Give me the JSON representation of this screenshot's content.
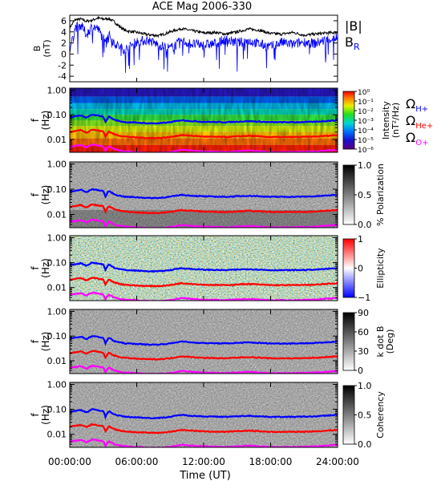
{
  "chart_data": [
    {
      "type": "line",
      "title": "ACE Mag 2006-330",
      "ylabel": "B",
      "yunit": "(nT)",
      "ylim": [
        -5,
        7
      ],
      "yticks": [
        "6",
        "4",
        "2",
        "0",
        "-2",
        "-4"
      ],
      "xlim": [
        "00:00:00",
        "24:00:00"
      ],
      "series": [
        {
          "name": "|B|",
          "color": "#000000",
          "x_hours": [
            0,
            0.5,
            1,
            1.5,
            2,
            2.5,
            3,
            3.5,
            4,
            4.5,
            5,
            6,
            7,
            8,
            9,
            10,
            11,
            12,
            13,
            14,
            15,
            16,
            17,
            18,
            19,
            20,
            21,
            22,
            23,
            24
          ],
          "values": [
            4.8,
            6.2,
            6.3,
            5.9,
            6.1,
            6.5,
            6.3,
            6.4,
            5.8,
            4.9,
            4.2,
            3.9,
            3.5,
            3.3,
            4.0,
            4.6,
            4.2,
            3.8,
            3.9,
            3.6,
            4.0,
            4.5,
            4.3,
            3.7,
            3.6,
            3.9,
            3.4,
            3.6,
            3.8,
            3.9
          ]
        },
        {
          "name": "B_R",
          "color": "#0000ff",
          "x_hours": [
            0,
            0.5,
            1,
            1.5,
            2,
            2.5,
            3,
            3.5,
            4,
            4.5,
            5,
            6,
            7,
            8,
            9,
            10,
            11,
            12,
            13,
            14,
            15,
            16,
            17,
            18,
            19,
            20,
            21,
            22,
            23,
            24
          ],
          "values": [
            0.5,
            4.8,
            5.2,
            3.5,
            5.0,
            4.6,
            2.8,
            3.5,
            2.0,
            1.2,
            0.8,
            2.2,
            2.5,
            1.6,
            1.0,
            2.3,
            1.8,
            1.6,
            1.9,
            2.6,
            2.0,
            2.4,
            1.8,
            1.3,
            2.1,
            1.7,
            2.2,
            1.9,
            2.6,
            3.0
          ]
        }
      ]
    },
    {
      "type": "heatmap",
      "ylabel": "f",
      "yunit": "(Hz)",
      "colorbar_label": "Intensity",
      "colorbar_unit": "(nT²/Hz)",
      "colorbar_ticks": [
        "10⁰",
        "10⁻¹",
        "10⁻²",
        "10⁻³",
        "10⁻⁴",
        "10⁻⁵",
        "10⁻⁶"
      ],
      "colorbar_range": [
        1e-06,
        1
      ],
      "log_y": true
    },
    {
      "type": "heatmap",
      "ylabel": "f",
      "yunit": "(Hz)",
      "colorbar_label": "% Polarization",
      "colorbar_ticks": [
        "1.0",
        "0.5",
        "0.0"
      ],
      "colorbar_range": [
        0,
        1
      ],
      "log_y": true
    },
    {
      "type": "heatmap",
      "ylabel": "f",
      "yunit": "(Hz)",
      "colorbar_label": "Ellipticity",
      "colorbar_ticks": [
        "1",
        "0",
        "−1"
      ],
      "colorbar_range": [
        -1,
        1
      ],
      "log_y": true
    },
    {
      "type": "heatmap",
      "ylabel": "f",
      "yunit": "(Hz)",
      "colorbar_label": "k dot B",
      "colorbar_unit": "(Deg)",
      "colorbar_ticks": [
        "90",
        "60",
        "30",
        "0"
      ],
      "colorbar_range": [
        0,
        90
      ],
      "log_y": true
    },
    {
      "type": "heatmap",
      "ylabel": "f",
      "yunit": "(Hz)",
      "colorbar_label": "Coherency",
      "colorbar_ticks": [
        "1.0",
        "0.5",
        "0.0"
      ],
      "colorbar_range": [
        0,
        1
      ],
      "log_y": true
    }
  ],
  "shared": {
    "freq_ticks": [
      "1.00",
      "0.10",
      "0.01"
    ],
    "freq_range_hz": [
      0.003,
      1.2
    ],
    "time_ticks": [
      "00:00:00",
      "06:00:00",
      "12:00:00",
      "18:00:00",
      "24:00:00"
    ],
    "xlabel": "Time (UT)",
    "gyro_lines": [
      {
        "label": "Ω",
        "subscript": "H+",
        "color": "#0000ff",
        "x_hours": [
          0,
          1,
          1.5,
          2,
          3,
          3.2,
          3.5,
          4,
          4.5,
          5,
          6,
          7,
          8,
          9,
          10,
          11,
          12,
          14,
          16,
          18,
          20,
          22,
          24
        ],
        "values": [
          0.078,
          0.095,
          0.075,
          0.1,
          0.085,
          0.05,
          0.085,
          0.062,
          0.055,
          0.05,
          0.048,
          0.045,
          0.045,
          0.05,
          0.06,
          0.055,
          0.052,
          0.05,
          0.055,
          0.05,
          0.05,
          0.052,
          0.06
        ]
      },
      {
        "label": "Ω",
        "subscript": "He+",
        "color": "#ff0000",
        "x_hours": [
          0,
          1,
          1.5,
          2,
          3,
          3.2,
          3.5,
          4,
          4.5,
          5,
          6,
          7,
          8,
          9,
          10,
          11,
          12,
          14,
          16,
          18,
          20,
          22,
          24
        ],
        "values": [
          0.02,
          0.024,
          0.019,
          0.025,
          0.021,
          0.013,
          0.021,
          0.016,
          0.014,
          0.013,
          0.012,
          0.0115,
          0.0115,
          0.0125,
          0.015,
          0.014,
          0.013,
          0.0125,
          0.014,
          0.0125,
          0.0125,
          0.013,
          0.015
        ]
      },
      {
        "label": "Ω",
        "subscript": "O+",
        "color": "#ff00ff",
        "x_hours": [
          0,
          1,
          1.5,
          2,
          3,
          3.2,
          3.5,
          4,
          4.5,
          5,
          6,
          7,
          8,
          9,
          10,
          11,
          12,
          14,
          16,
          18,
          20,
          22,
          24
        ],
        "values": [
          0.005,
          0.006,
          0.0048,
          0.0062,
          0.0053,
          0.0033,
          0.0053,
          0.004,
          0.0035,
          0.0033,
          0.0031,
          0.0029,
          0.0029,
          0.0031,
          0.0038,
          0.0035,
          0.0033,
          0.0031,
          0.0035,
          0.0031,
          0.0031,
          0.0033,
          0.0038
        ]
      }
    ],
    "top_legend": [
      {
        "text": "|B|",
        "sub": "",
        "color": "#000000"
      },
      {
        "text": "B",
        "sub": "R",
        "color": "#0000ff"
      }
    ]
  }
}
